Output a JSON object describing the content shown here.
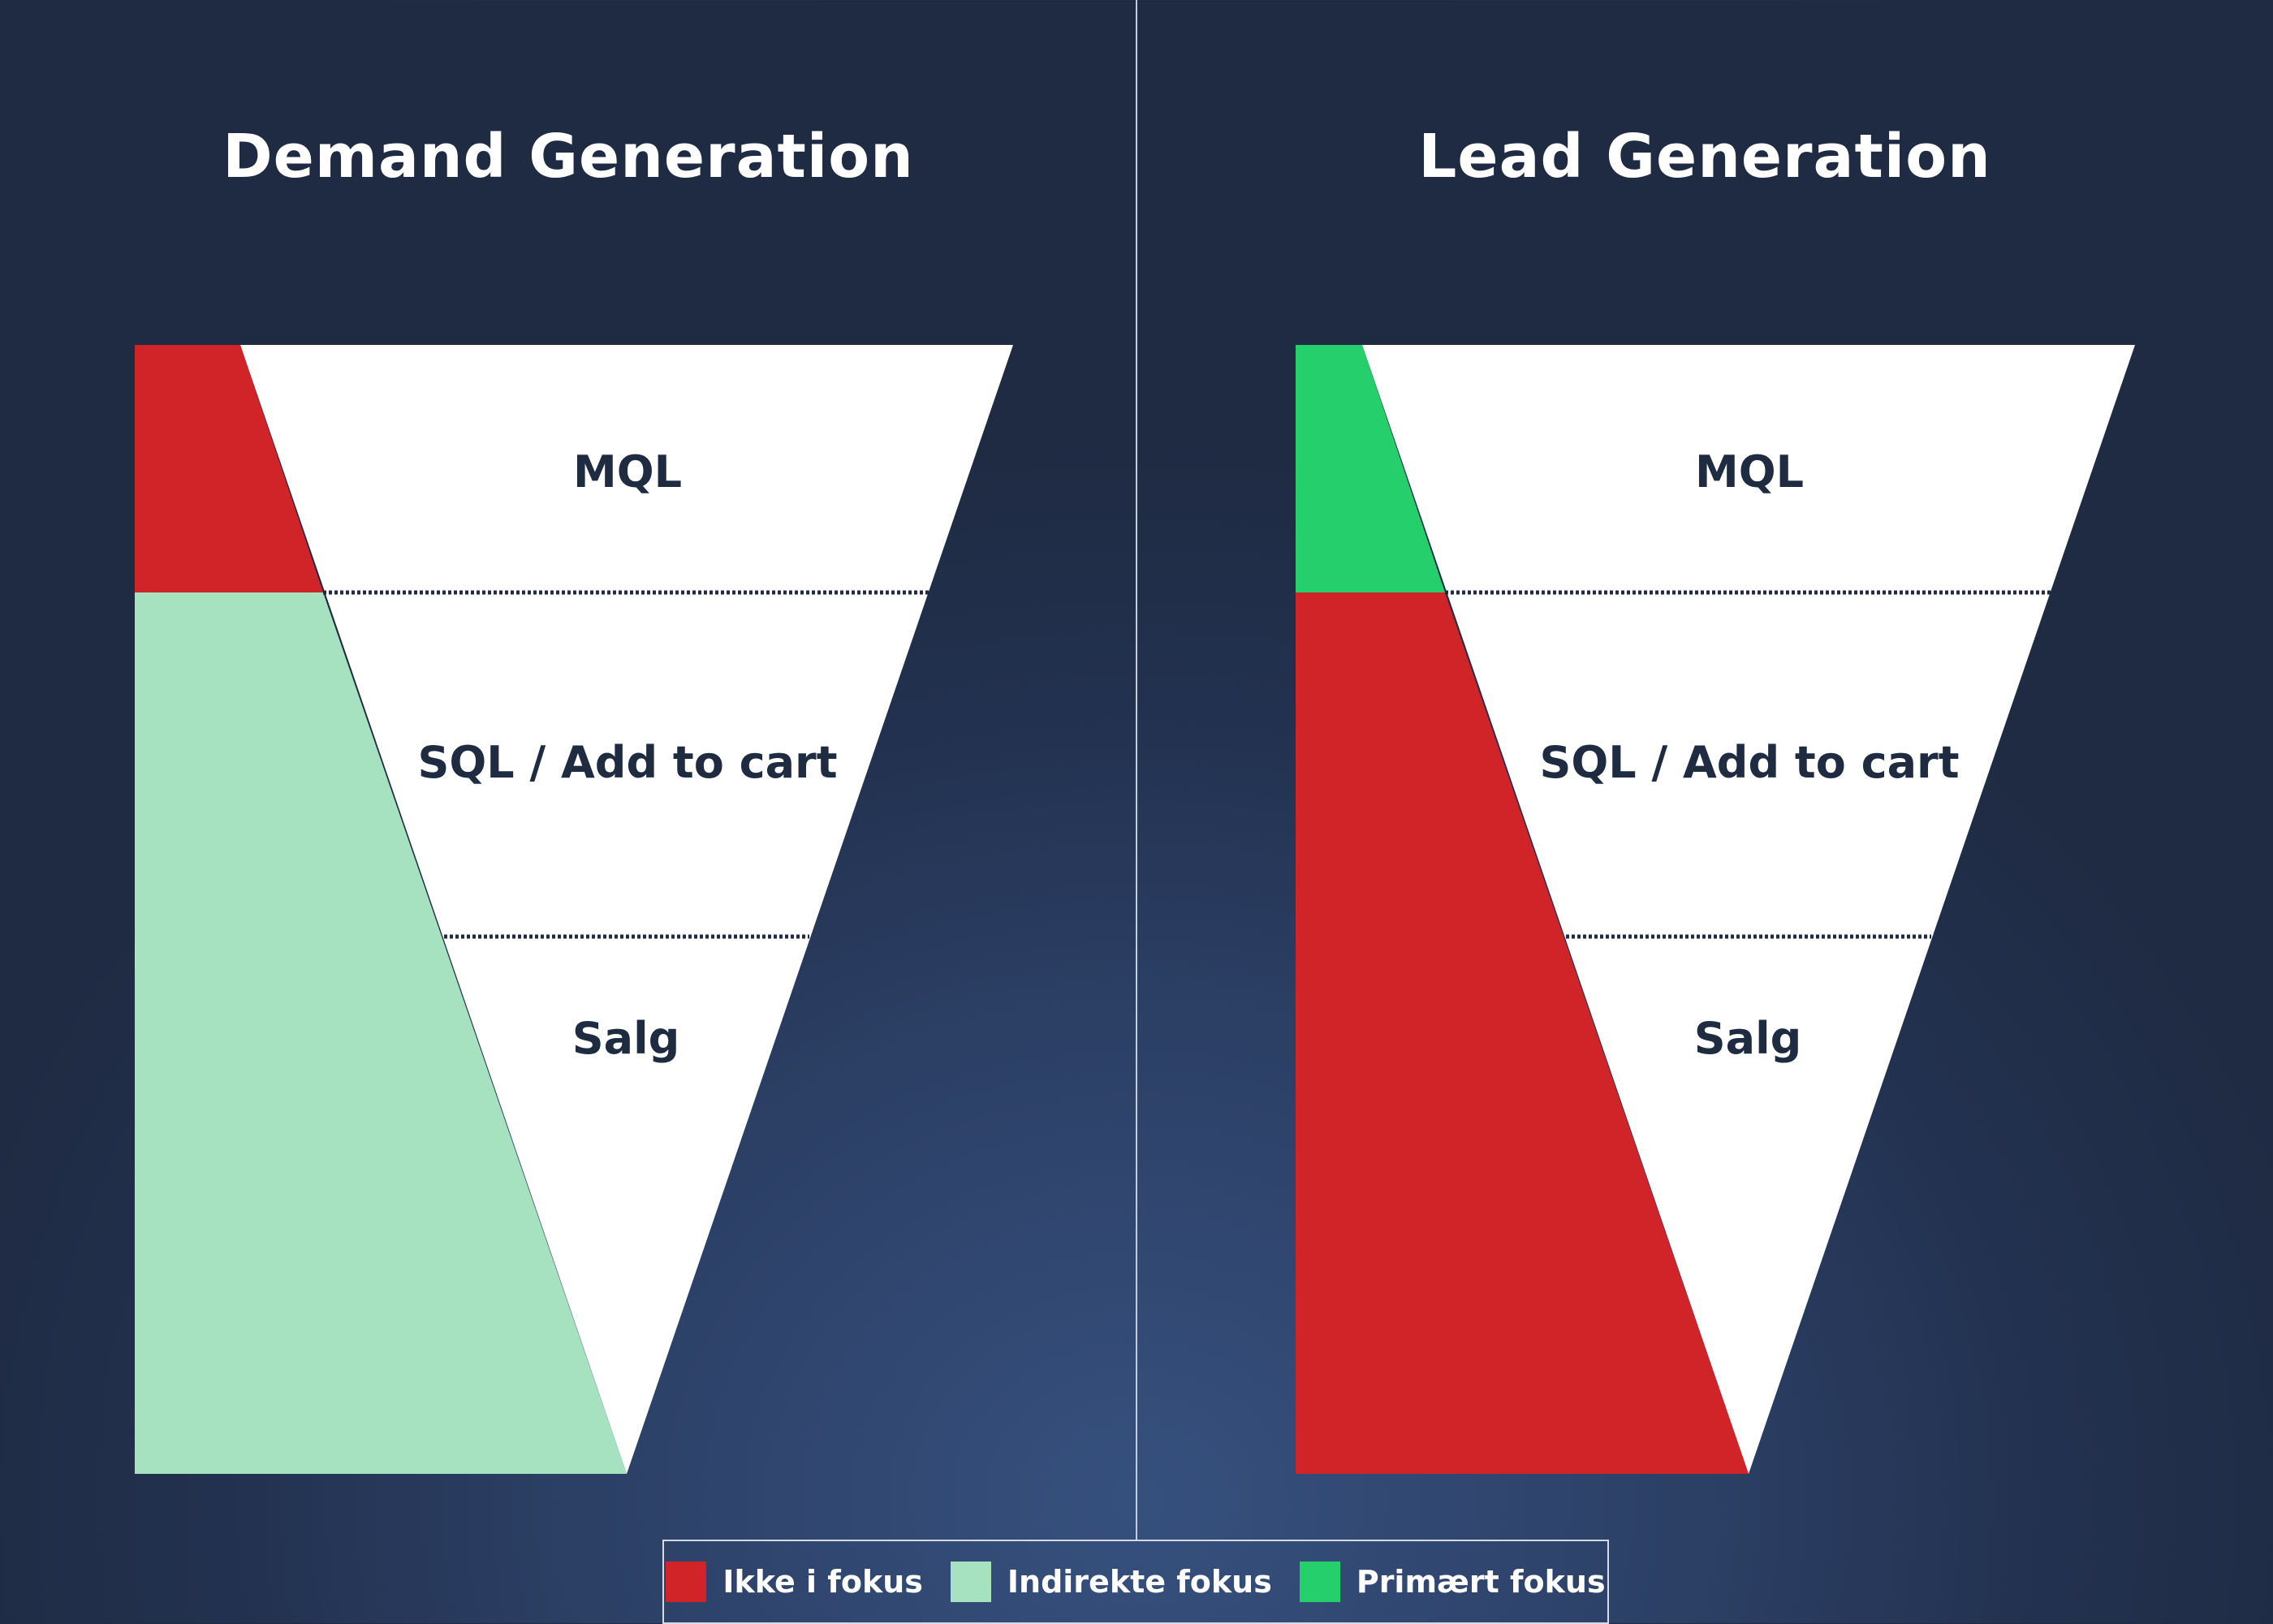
{
  "panels": {
    "left": {
      "title": "Demand Generation"
    },
    "right": {
      "title": "Lead Generation"
    }
  },
  "stages": {
    "mql": "MQL",
    "sql": "SQL / Add to cart",
    "salg": "Salg"
  },
  "legend": {
    "not_focus": "Ikke i fokus",
    "indirect_focus": "Indirekte fokus",
    "primary_focus": "Primært fokus"
  },
  "colors": {
    "not_focus": "#d12428",
    "indirect_focus": "#a6e1c0",
    "primary_focus": "#24cf6c",
    "funnel": "#ffffff",
    "stage_text": "#1e2b40"
  }
}
